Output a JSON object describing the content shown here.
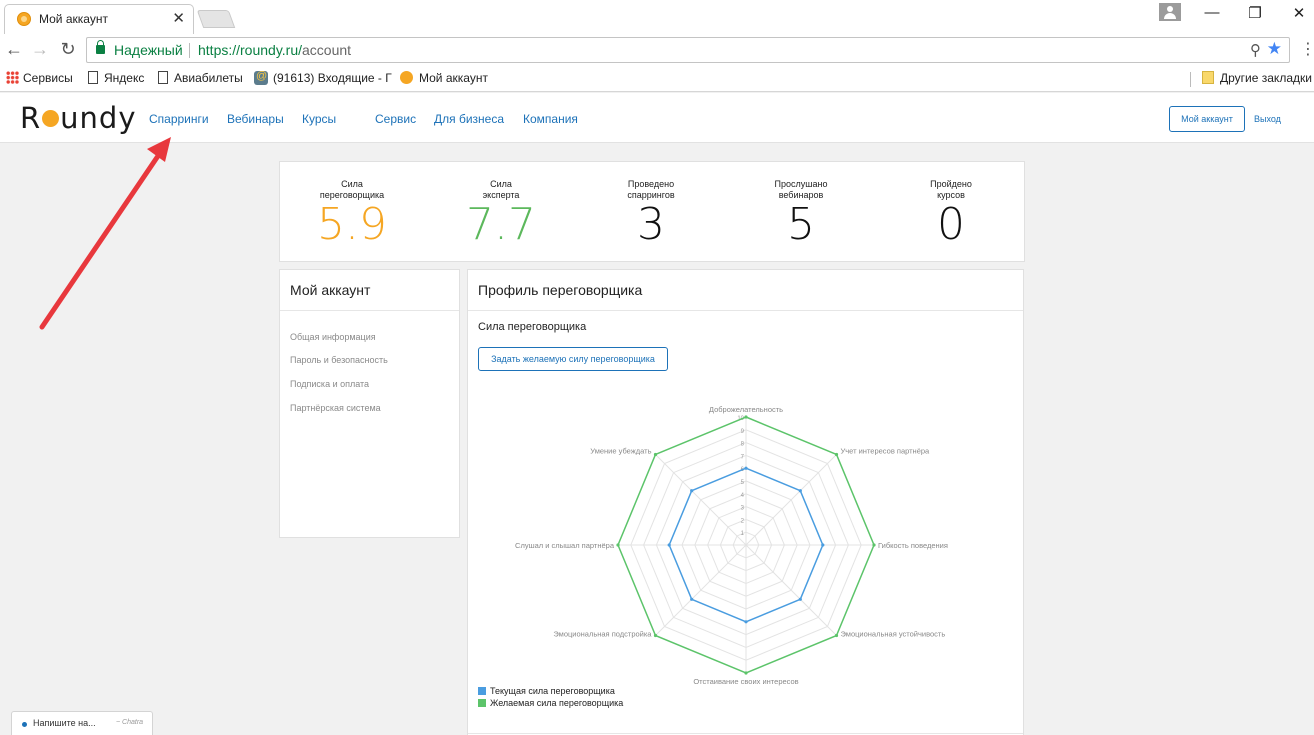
{
  "browser": {
    "tab_title": "Мой аккаунт",
    "tab_close": "✕",
    "window_controls": [
      "—",
      "❐",
      "✕"
    ],
    "nav": {
      "back": "←",
      "forward": "→",
      "reload": "↻"
    },
    "secure_label": "Надежный",
    "url_scheme_host": "https://roundy.ru/",
    "url_path": "account",
    "zoom_icon": "⚲",
    "bookmark_star": "★",
    "menu_icon": "⋮",
    "bookmarks": [
      {
        "label": "Сервисы",
        "icon": "apps-icon"
      },
      {
        "label": "Яндекс",
        "icon": "page-icon"
      },
      {
        "label": "Авиабилеты",
        "icon": "page-icon"
      },
      {
        "label": "(91613) Входящие - Г",
        "icon": "mail-icon"
      },
      {
        "label": "Мой аккаунт",
        "icon": "roundy-icon"
      }
    ],
    "other_bookmarks": "Другие закладки"
  },
  "site": {
    "logo_left": "R",
    "logo_right": "undy",
    "nav": [
      "Спарринги",
      "Вебинары",
      "Курсы",
      "Сервис",
      "Для бизнеса",
      "Компания"
    ],
    "account_button": "Мой аккаунт",
    "logout": "Выход"
  },
  "stats": [
    {
      "label_line1": "Сила",
      "label_line2": "переговорщика",
      "value": "5.9",
      "color": "#f5a623"
    },
    {
      "label_line1": "Сила",
      "label_line2": "эксперта",
      "value": "7.7",
      "color": "#5cb85c"
    },
    {
      "label_line1": "Проведено",
      "label_line2": "спаррингов",
      "value": "3",
      "color": "#111111"
    },
    {
      "label_line1": "Прослушано",
      "label_line2": "вебинаров",
      "value": "5",
      "color": "#111111"
    },
    {
      "label_line1": "Пройдено",
      "label_line2": "курсов",
      "value": "0",
      "color": "#111111"
    }
  ],
  "sidebar": {
    "title": "Мой аккаунт",
    "items": [
      "Общая информация",
      "Пароль и безопасность",
      "Подписка и оплата",
      "Партнёрская система"
    ]
  },
  "profile": {
    "title": "Профиль переговорщика",
    "section_title": "Сила переговорщика",
    "set_button": "Задать желаемую силу переговорщика"
  },
  "chart_data": {
    "type": "radar",
    "axes": [
      "Доброжелательность",
      "Учет интересов партнёра",
      "Гибкость поведения",
      "Эмоциональная устойчивость",
      "Отстаивание своих интересов",
      "Эмоциональная подстройка",
      "Слушал и слышал партнёра",
      "Умение убеждать"
    ],
    "r_ticks": [
      "1",
      "2",
      "3",
      "4",
      "5",
      "6",
      "7",
      "8",
      "9",
      "10"
    ],
    "r_range": [
      0,
      10
    ],
    "grid": true,
    "legend_position": "bottom-left",
    "series": [
      {
        "name": "Текущая сила переговорщика",
        "color": "#4a9de0",
        "values": [
          6,
          6,
          6,
          6,
          6,
          6,
          6,
          6
        ]
      },
      {
        "name": "Желаемая сила переговорщика",
        "color": "#5cc46a",
        "values": [
          10,
          10,
          10,
          10,
          10,
          10,
          10,
          10
        ]
      }
    ]
  },
  "chat": {
    "text": "Напишите на...",
    "brand": "~ Chatra"
  },
  "accent_colors": {
    "link": "#1d72b8",
    "arrow": "#e8383d"
  }
}
